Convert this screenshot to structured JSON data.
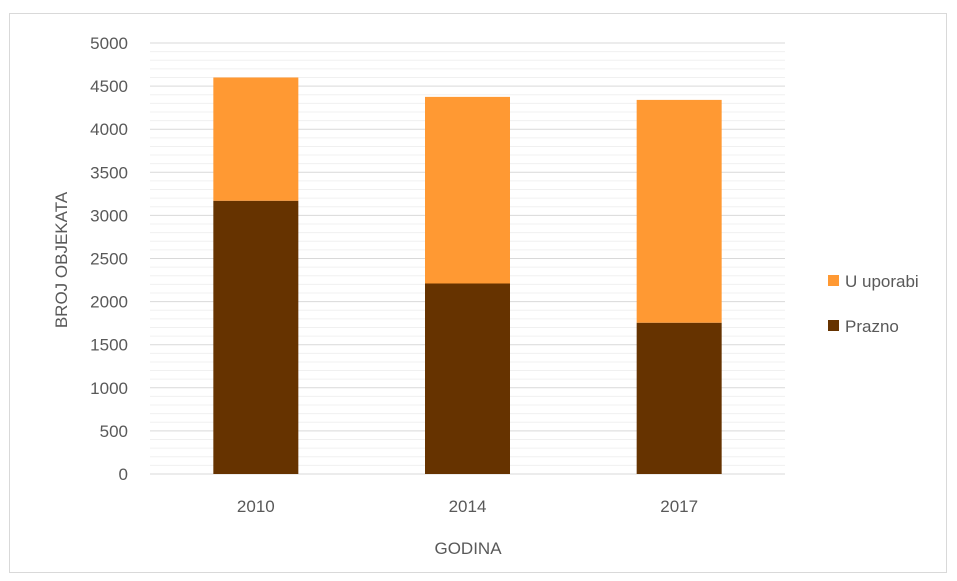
{
  "chart_data": {
    "type": "bar",
    "stacked": true,
    "categories": [
      "2010",
      "2014",
      "2017"
    ],
    "series": [
      {
        "name": "Prazno",
        "values": [
          3170,
          2210,
          1755
        ],
        "color": "#663300"
      },
      {
        "name": "U uporabi",
        "values": [
          1430,
          2165,
          2585
        ],
        "color": "#ff9933"
      }
    ],
    "xlabel": "GODINA",
    "ylabel": "BROJ OBJEKATA",
    "ylim": [
      0,
      5000
    ],
    "ytick_step": 500,
    "yticks": [
      "0",
      "500",
      "1000",
      "1500",
      "2000",
      "2500",
      "3000",
      "3500",
      "4000",
      "4500",
      "5000"
    ],
    "legend": {
      "position": "right",
      "entries": [
        "U uporabi",
        "Prazno"
      ]
    },
    "grid": true,
    "gridline_color": "#d9d9d9",
    "minor_gridline_color": "#f0f0f0"
  }
}
